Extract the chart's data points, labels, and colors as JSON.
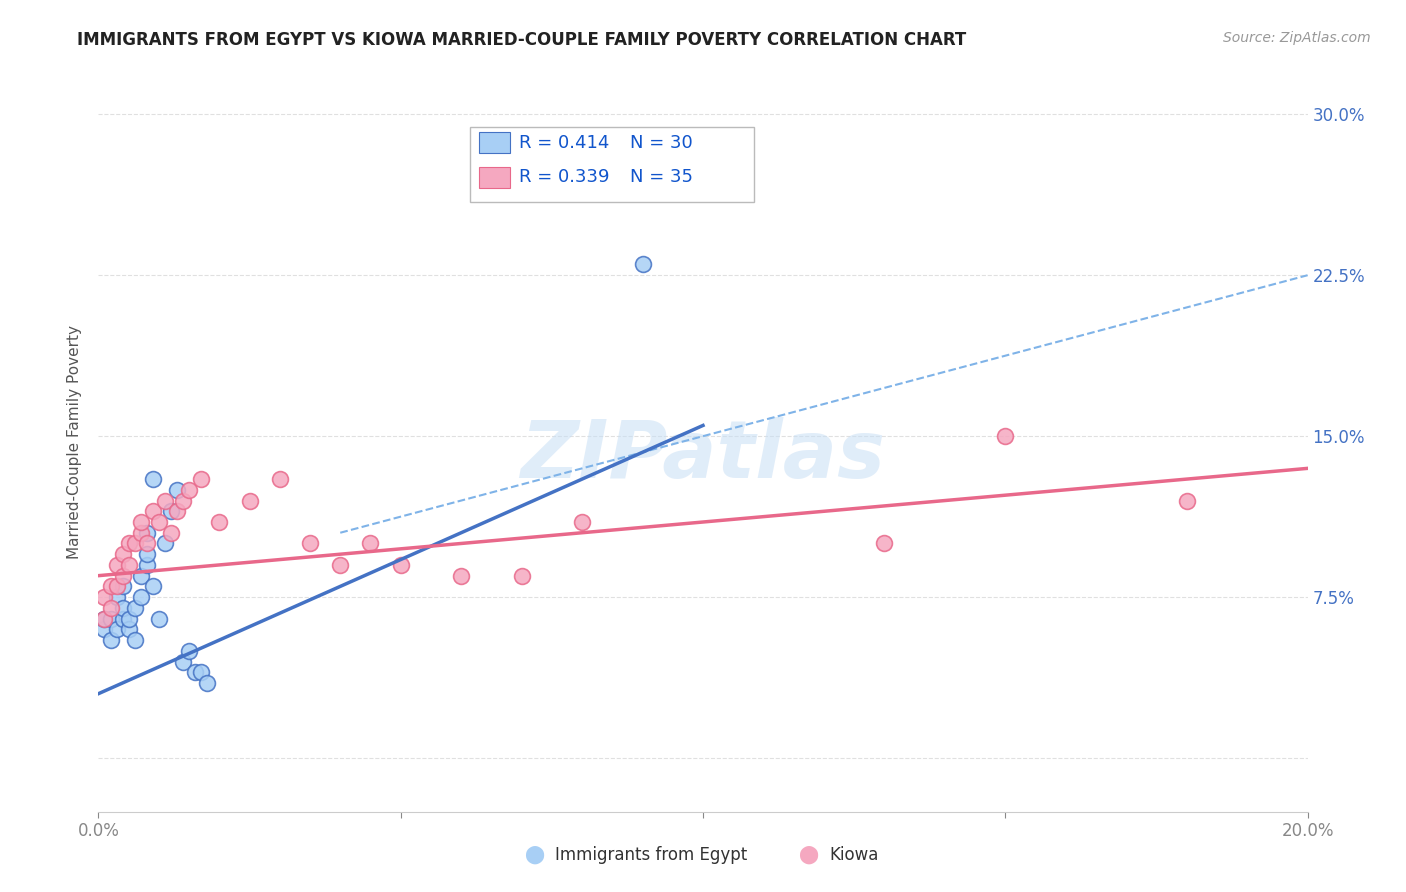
{
  "title": "IMMIGRANTS FROM EGYPT VS KIOWA MARRIED-COUPLE FAMILY POVERTY CORRELATION CHART",
  "source": "Source: ZipAtlas.com",
  "ylabel": "Married-Couple Family Poverty",
  "xlim": [
    0.0,
    0.2
  ],
  "ylim": [
    -0.025,
    0.32
  ],
  "xticks": [
    0.0,
    0.05,
    0.1,
    0.15,
    0.2
  ],
  "xticklabels": [
    "0.0%",
    "",
    "",
    "",
    "20.0%"
  ],
  "yticks": [
    0.0,
    0.075,
    0.15,
    0.225,
    0.3
  ],
  "yticklabels_right": [
    "",
    "7.5%",
    "15.0%",
    "22.5%",
    "30.0%"
  ],
  "legend_r1": "R = 0.414",
  "legend_n1": "N = 30",
  "legend_r2": "R = 0.339",
  "legend_n2": "N = 35",
  "color_egypt": "#A8CFF5",
  "color_kiowa": "#F5A8C0",
  "color_line_egypt": "#4472C4",
  "color_line_kiowa": "#E8688A",
  "color_dashed": "#7FB3E8",
  "watermark": "ZIPatlas",
  "egypt_x": [
    0.001,
    0.001,
    0.002,
    0.002,
    0.003,
    0.003,
    0.004,
    0.004,
    0.004,
    0.005,
    0.005,
    0.006,
    0.006,
    0.007,
    0.007,
    0.008,
    0.008,
    0.008,
    0.009,
    0.009,
    0.01,
    0.011,
    0.012,
    0.013,
    0.014,
    0.015,
    0.016,
    0.017,
    0.018,
    0.09
  ],
  "egypt_y": [
    0.06,
    0.065,
    0.055,
    0.065,
    0.06,
    0.075,
    0.065,
    0.07,
    0.08,
    0.06,
    0.065,
    0.055,
    0.07,
    0.075,
    0.085,
    0.09,
    0.095,
    0.105,
    0.08,
    0.13,
    0.065,
    0.1,
    0.115,
    0.125,
    0.045,
    0.05,
    0.04,
    0.04,
    0.035,
    0.23
  ],
  "kiowa_x": [
    0.001,
    0.001,
    0.002,
    0.002,
    0.003,
    0.003,
    0.004,
    0.004,
    0.005,
    0.005,
    0.006,
    0.007,
    0.007,
    0.008,
    0.009,
    0.01,
    0.011,
    0.012,
    0.013,
    0.014,
    0.015,
    0.017,
    0.02,
    0.025,
    0.03,
    0.035,
    0.04,
    0.045,
    0.05,
    0.06,
    0.07,
    0.08,
    0.13,
    0.15,
    0.18
  ],
  "kiowa_y": [
    0.065,
    0.075,
    0.07,
    0.08,
    0.08,
    0.09,
    0.085,
    0.095,
    0.09,
    0.1,
    0.1,
    0.105,
    0.11,
    0.1,
    0.115,
    0.11,
    0.12,
    0.105,
    0.115,
    0.12,
    0.125,
    0.13,
    0.11,
    0.12,
    0.13,
    0.1,
    0.09,
    0.1,
    0.09,
    0.085,
    0.085,
    0.11,
    0.1,
    0.15,
    0.12
  ],
  "egypt_line_x0": 0.0,
  "egypt_line_y0": 0.03,
  "egypt_line_x1": 0.1,
  "egypt_line_y1": 0.155,
  "kiowa_line_x0": 0.0,
  "kiowa_line_y0": 0.085,
  "kiowa_line_x1": 0.2,
  "kiowa_line_y1": 0.135,
  "dash_line_x0": 0.04,
  "dash_line_y0": 0.105,
  "dash_line_x1": 0.2,
  "dash_line_y1": 0.225,
  "tick_color": "#4472C4",
  "legend_color": "#1155CC",
  "axis_color": "#4472C4"
}
